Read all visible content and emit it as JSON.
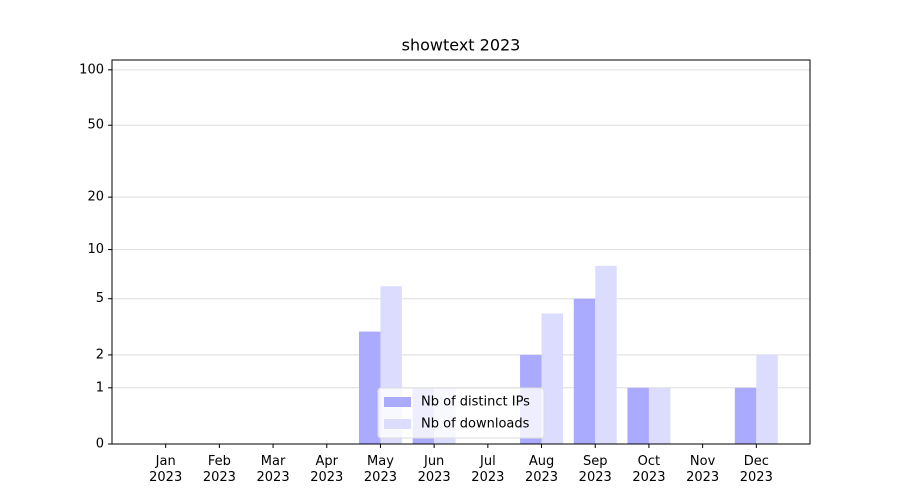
{
  "chart_data": {
    "type": "bar",
    "title": "showtext 2023",
    "categories": [
      "Jan 2023",
      "Feb 2023",
      "Mar 2023",
      "Apr 2023",
      "May 2023",
      "Jun 2023",
      "Jul 2023",
      "Aug 2023",
      "Sep 2023",
      "Oct 2023",
      "Nov 2023",
      "Dec 2023"
    ],
    "series": [
      {
        "name": "Nb of distinct IPs",
        "color": "#aaaaff",
        "values": [
          0,
          0,
          0,
          0,
          3,
          1,
          0,
          2,
          5,
          1,
          0,
          1
        ]
      },
      {
        "name": "Nb of downloads",
        "color": "#dcdcff",
        "values": [
          0,
          0,
          0,
          0,
          6,
          1,
          0,
          4,
          8,
          1,
          0,
          2
        ]
      }
    ],
    "yscale": "log1p",
    "ylim": [
      0,
      113
    ],
    "yticks": [
      0,
      1,
      2,
      5,
      10,
      20,
      50,
      100
    ],
    "grid": true,
    "legend": "lower center"
  }
}
